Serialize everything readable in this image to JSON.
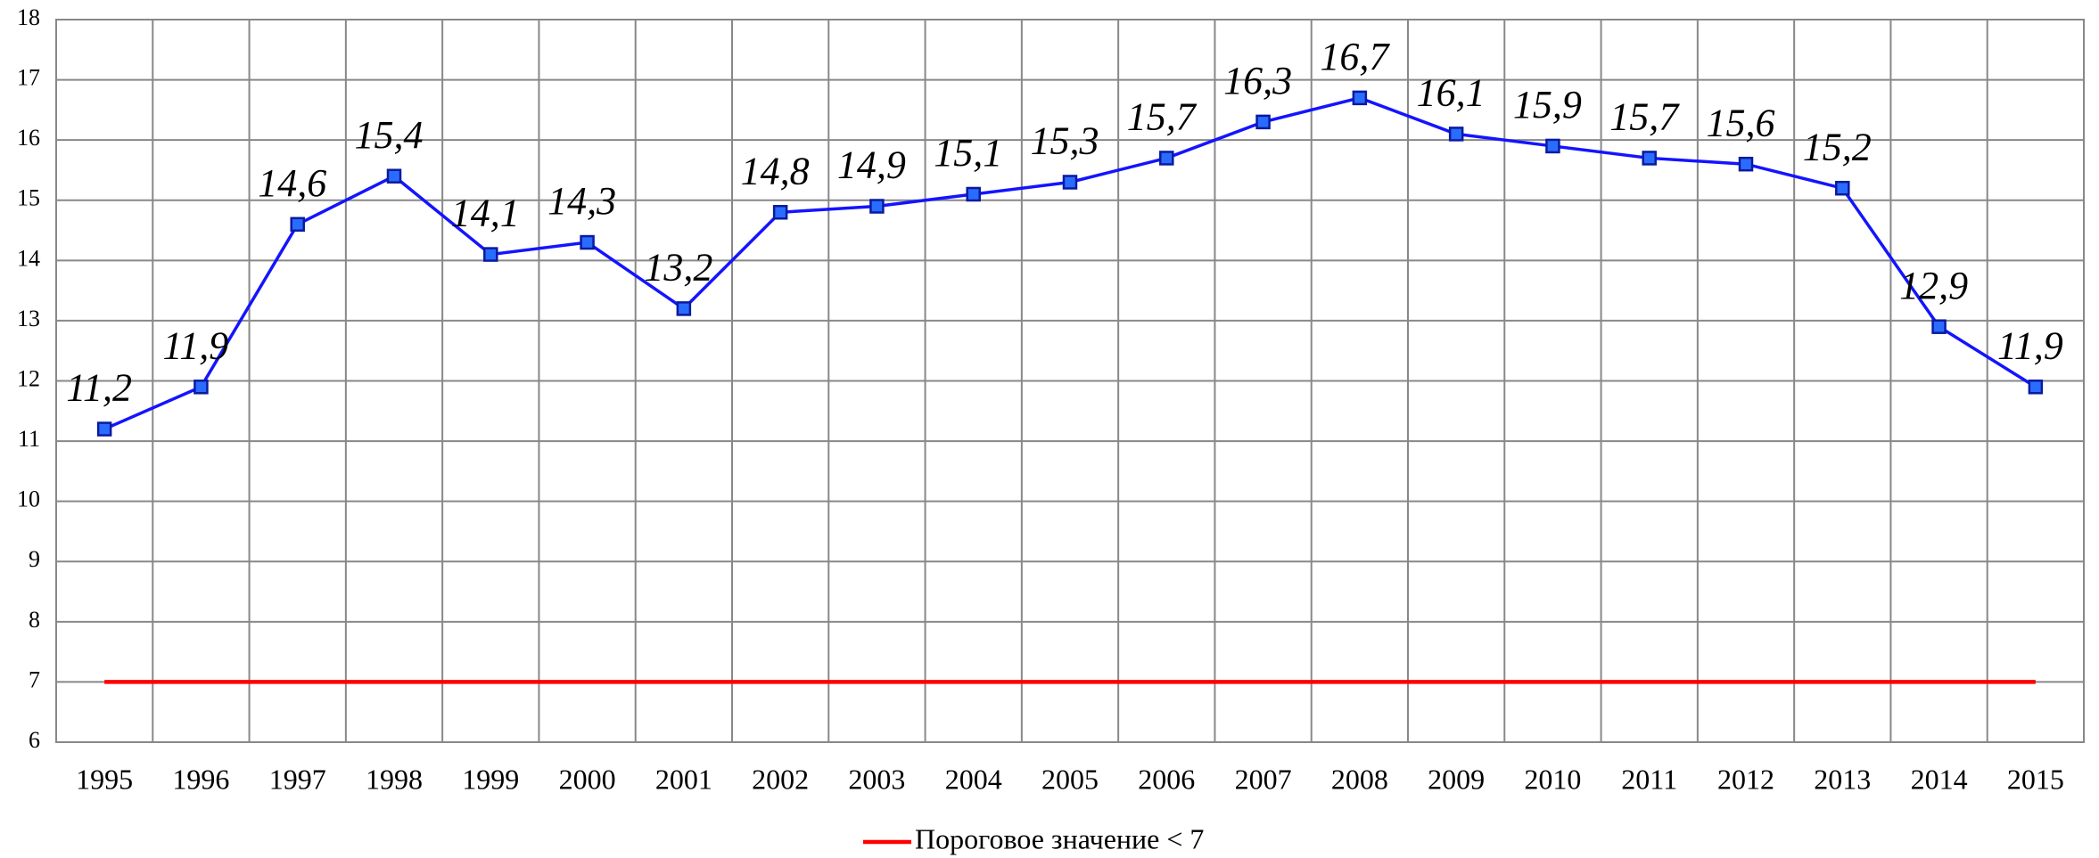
{
  "chart_data": {
    "type": "line",
    "categories": [
      "1995",
      "1996",
      "1997",
      "1998",
      "1999",
      "2000",
      "2001",
      "2002",
      "2003",
      "2004",
      "2005",
      "2006",
      "2007",
      "2008",
      "2009",
      "2010",
      "2011",
      "2012",
      "2013",
      "2014",
      "2015"
    ],
    "series": [
      {
        "color": "#1414ff",
        "marker": "square",
        "values": [
          11.2,
          11.9,
          14.6,
          15.4,
          14.1,
          14.3,
          13.2,
          14.8,
          14.9,
          15.1,
          15.3,
          15.7,
          16.3,
          16.7,
          16.1,
          15.9,
          15.7,
          15.6,
          15.2,
          12.9,
          11.9
        ],
        "value_labels": [
          "11,2",
          "11,9",
          "14,6",
          "15,4",
          "14,1",
          "14,3",
          "13,2",
          "14,8",
          "14,9",
          "15,1",
          "15,3",
          "15,7",
          "16,3",
          "16,7",
          "16,1",
          "15,9",
          "15,7",
          "15,6",
          "15,2",
          "12,9",
          "11,9"
        ]
      },
      {
        "name": "Пороговое значение < 7",
        "color": "#ff0000",
        "values": [
          7,
          7,
          7,
          7,
          7,
          7,
          7,
          7,
          7,
          7,
          7,
          7,
          7,
          7,
          7,
          7,
          7,
          7,
          7,
          7,
          7
        ]
      }
    ],
    "ylim": [
      6,
      18
    ],
    "yticks": [
      6,
      7,
      8,
      9,
      10,
      11,
      12,
      13,
      14,
      15,
      16,
      17,
      18
    ],
    "grid": true,
    "legend": "bottom"
  }
}
